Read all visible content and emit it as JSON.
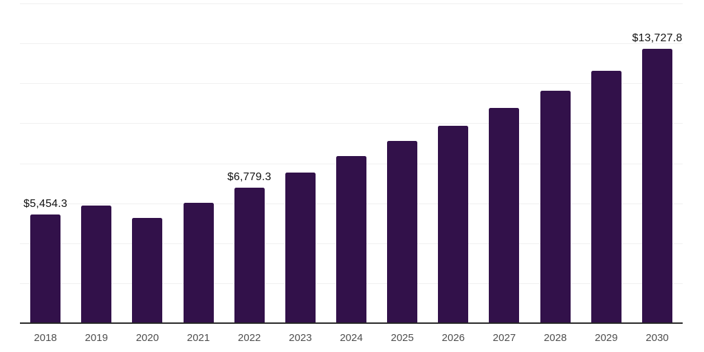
{
  "chart_data": {
    "type": "bar",
    "title": "",
    "xlabel": "",
    "ylabel": "",
    "categories": [
      "2018",
      "2019",
      "2020",
      "2021",
      "2022",
      "2023",
      "2024",
      "2025",
      "2026",
      "2027",
      "2028",
      "2029",
      "2030"
    ],
    "values": [
      5454.3,
      5900,
      5280,
      6010,
      6779.3,
      7530,
      8350,
      9130,
      9880,
      10770,
      11640,
      12640,
      13727.8
    ],
    "point_labels": [
      "$5,454.3",
      "",
      "",
      "",
      "$6,779.3",
      "",
      "",
      "",
      "",
      "",
      "",
      "",
      "$13,727.8"
    ],
    "ylim": [
      0,
      16000
    ],
    "grid": true,
    "gridline_interval": 2000,
    "y_tick_labels_shown": false,
    "legend": null,
    "colors": {
      "bar": "#32114a",
      "axis": "#262626",
      "gridline": "#f0f0f0",
      "value_label": "#111111",
      "tick_label": "#4d4d4d",
      "background": "#ffffff"
    }
  }
}
